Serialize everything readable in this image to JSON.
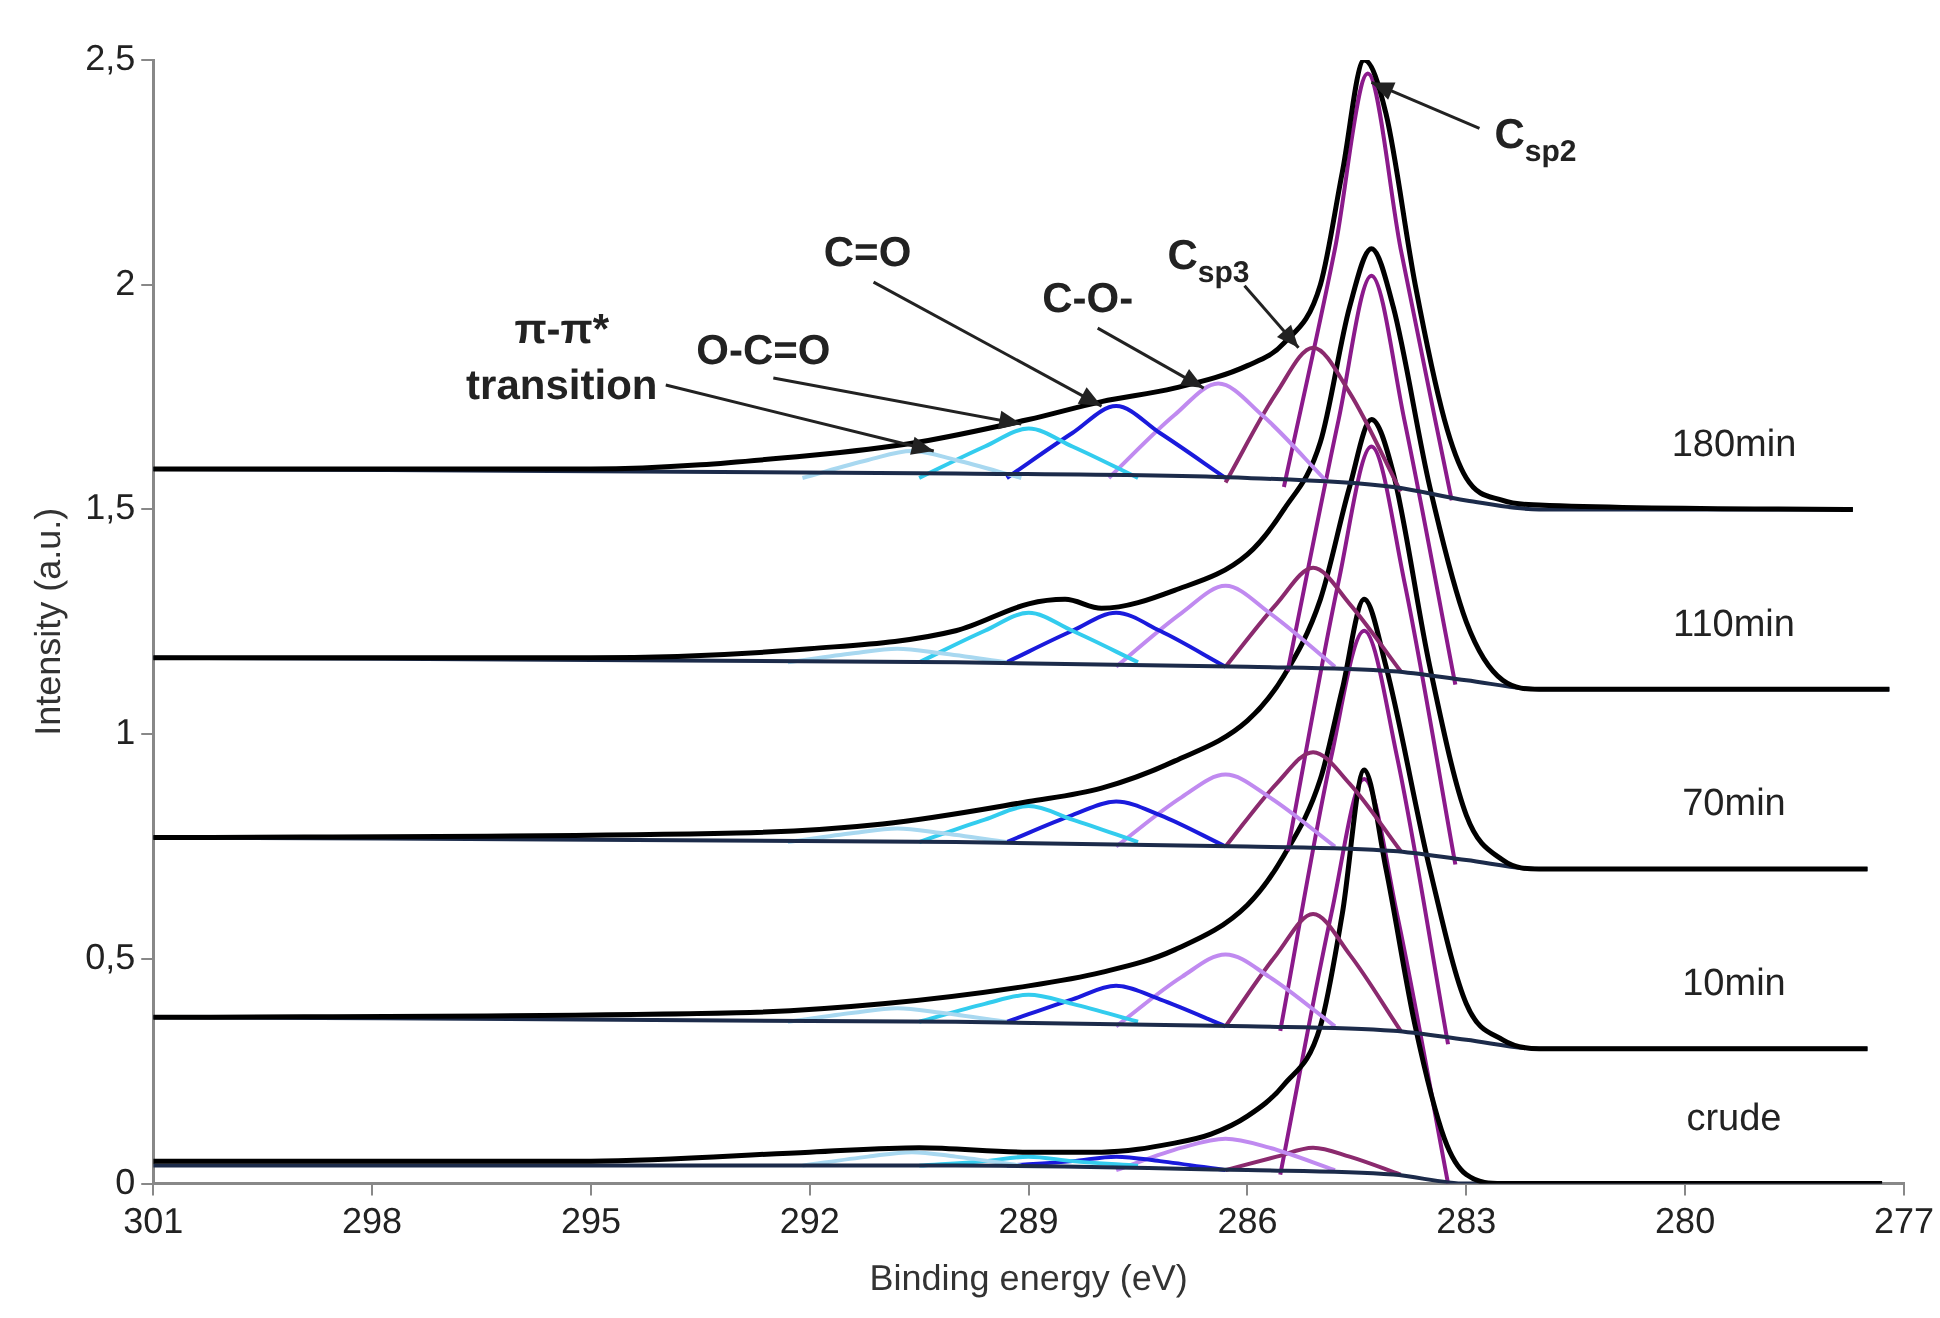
{
  "chart_data": {
    "type": "line",
    "xlabel": "Binding energy (eV)",
    "ylabel": "Intensity (a.u.)",
    "xlim": [
      301,
      277
    ],
    "xticks": [
      301,
      298,
      295,
      292,
      289,
      286,
      283,
      280,
      277
    ],
    "ylim": [
      0,
      2.5
    ],
    "yticks": [
      0,
      {
        "value": 0.5,
        "label": "0,5"
      },
      1,
      {
        "value": 1.5,
        "label": "1,5"
      },
      2,
      {
        "value": 2.5,
        "label": "2,5"
      }
    ],
    "grid": false,
    "legend": false,
    "marker": "none",
    "line_style": "solid",
    "annotations": [
      {
        "text": "π-π* transition",
        "x": 290.3,
        "y": 1.63
      },
      {
        "text": "O-C=O",
        "x": 289.1,
        "y": 1.69
      },
      {
        "text": "C=O",
        "x": 288,
        "y": 1.73
      },
      {
        "text": "C-O-",
        "x": 286.6,
        "y": 1.77
      },
      {
        "text": "C$_{sp3}$",
        "x": 285.3,
        "y": 1.86
      },
      {
        "text": "C$_{sp2}$",
        "x": 284.3,
        "y": 2.45
      }
    ],
    "series": [
      {
        "name": "180min",
        "color": "#000000",
        "x": [
          301,
          295,
          292,
          290.5,
          289,
          288,
          287,
          286,
          285.5,
          285,
          284.7,
          284.4,
          284.1,
          283.7,
          283.3,
          283,
          282.5,
          282,
          277.7
        ],
        "values": [
          1.59,
          1.59,
          1.62,
          1.65,
          1.7,
          1.74,
          1.77,
          1.82,
          1.87,
          2.0,
          2.25,
          2.5,
          2.38,
          2.0,
          1.7,
          1.57,
          1.52,
          1.51,
          1.5
        ]
      },
      {
        "type": "line",
        "color": "#1c2b4a",
        "x": [
          301,
          290,
          286,
          284,
          283,
          282,
          277.7
        ],
        "values": [
          1.59,
          1.58,
          1.57,
          1.55,
          1.52,
          1.5,
          1.5
        ]
      },
      {
        "type": "line",
        "color": "#a8d8f0",
        "x": [
          292.1,
          291.2,
          290.6,
          290.0,
          289.1
        ],
        "values": [
          1.57,
          1.61,
          1.63,
          1.61,
          1.57
        ]
      },
      {
        "type": "line",
        "color": "#33ccee",
        "x": [
          290.5,
          289.6,
          289.0,
          288.4,
          287.5
        ],
        "values": [
          1.57,
          1.64,
          1.68,
          1.64,
          1.57
        ]
      },
      {
        "type": "line",
        "color": "#1a1adc",
        "x": [
          289.3,
          288.4,
          287.8,
          287.2,
          286.3
        ],
        "values": [
          1.57,
          1.67,
          1.73,
          1.67,
          1.57
        ]
      },
      {
        "type": "line",
        "color": "#c08af0",
        "x": [
          287.9,
          287.0,
          286.4,
          285.8,
          284.9
        ],
        "values": [
          1.57,
          1.71,
          1.78,
          1.71,
          1.56
        ]
      },
      {
        "type": "line",
        "color": "#8b2a6e",
        "x": [
          286.3,
          285.6,
          285.1,
          284.6,
          283.9
        ],
        "values": [
          1.56,
          1.76,
          1.86,
          1.76,
          1.54
        ]
      },
      {
        "type": "line",
        "color": "#8b1a8b",
        "x": [
          285.5,
          284.8,
          284.35,
          283.9,
          283.2
        ],
        "values": [
          1.55,
          2.08,
          2.47,
          2.08,
          1.52
        ]
      },
      {
        "name": "110min",
        "color": "#000000",
        "x": [
          301,
          295,
          292,
          290,
          289,
          288.5,
          288,
          287,
          286,
          285.5,
          285,
          284.6,
          284.3,
          284,
          283.5,
          283,
          282.5,
          282,
          277.2
        ],
        "values": [
          1.17,
          1.17,
          1.19,
          1.23,
          1.29,
          1.3,
          1.28,
          1.32,
          1.4,
          1.5,
          1.65,
          1.95,
          2.08,
          1.95,
          1.55,
          1.25,
          1.12,
          1.1,
          1.1
        ]
      },
      {
        "type": "line",
        "color": "#1c2b4a",
        "x": [
          301,
          290,
          286,
          284,
          283,
          282,
          277.2
        ],
        "values": [
          1.17,
          1.16,
          1.15,
          1.14,
          1.12,
          1.1,
          1.1
        ]
      },
      {
        "type": "line",
        "color": "#a8d8f0",
        "x": [
          292.3,
          291.4,
          290.8,
          290.2,
          289.3
        ],
        "values": [
          1.16,
          1.18,
          1.19,
          1.18,
          1.16
        ]
      },
      {
        "type": "line",
        "color": "#33ccee",
        "x": [
          290.5,
          289.6,
          289.0,
          288.4,
          287.5
        ],
        "values": [
          1.16,
          1.23,
          1.27,
          1.23,
          1.16
        ]
      },
      {
        "type": "line",
        "color": "#1a1adc",
        "x": [
          289.3,
          288.4,
          287.8,
          287.2,
          286.3
        ],
        "values": [
          1.16,
          1.23,
          1.27,
          1.23,
          1.15
        ]
      },
      {
        "type": "line",
        "color": "#c08af0",
        "x": [
          287.8,
          286.9,
          286.3,
          285.7,
          284.8
        ],
        "values": [
          1.15,
          1.27,
          1.33,
          1.27,
          1.15
        ]
      },
      {
        "type": "line",
        "color": "#8b2a6e",
        "x": [
          286.3,
          285.6,
          285.1,
          284.6,
          283.9
        ],
        "values": [
          1.15,
          1.29,
          1.37,
          1.29,
          1.14
        ]
      },
      {
        "type": "line",
        "color": "#8b1a8b",
        "x": [
          285.45,
          284.75,
          284.3,
          283.85,
          283.15
        ],
        "values": [
          1.14,
          1.7,
          2.02,
          1.7,
          1.11
        ]
      },
      {
        "name": "70min",
        "color": "#000000",
        "x": [
          301,
          293,
          291,
          289,
          288,
          287,
          286,
          285.5,
          285,
          284.6,
          284.3,
          284,
          283.5,
          283,
          282.5,
          282,
          277.5
        ],
        "values": [
          0.77,
          0.78,
          0.8,
          0.85,
          0.88,
          0.94,
          1.03,
          1.13,
          1.3,
          1.55,
          1.7,
          1.58,
          1.15,
          0.82,
          0.72,
          0.7,
          0.7
        ]
      },
      {
        "type": "line",
        "color": "#1c2b4a",
        "x": [
          301,
          290,
          286,
          284,
          283,
          282,
          277.5
        ],
        "values": [
          0.77,
          0.76,
          0.75,
          0.74,
          0.72,
          0.7,
          0.7
        ]
      },
      {
        "type": "line",
        "color": "#a8d8f0",
        "x": [
          292.3,
          291.4,
          290.8,
          290.2,
          289.3
        ],
        "values": [
          0.76,
          0.78,
          0.79,
          0.78,
          0.76
        ]
      },
      {
        "type": "line",
        "color": "#33ccee",
        "x": [
          290.5,
          289.6,
          289.0,
          288.4,
          287.5
        ],
        "values": [
          0.76,
          0.81,
          0.84,
          0.81,
          0.76
        ]
      },
      {
        "type": "line",
        "color": "#1a1adc",
        "x": [
          289.3,
          288.4,
          287.8,
          287.2,
          286.3
        ],
        "values": [
          0.76,
          0.82,
          0.85,
          0.82,
          0.75
        ]
      },
      {
        "type": "line",
        "color": "#c08af0",
        "x": [
          287.8,
          286.9,
          286.3,
          285.7,
          284.8
        ],
        "values": [
          0.75,
          0.86,
          0.91,
          0.86,
          0.75
        ]
      },
      {
        "type": "line",
        "color": "#8b2a6e",
        "x": [
          286.3,
          285.6,
          285.1,
          284.6,
          283.9
        ],
        "values": [
          0.75,
          0.89,
          0.96,
          0.89,
          0.74
        ]
      },
      {
        "type": "line",
        "color": "#8b1a8b",
        "x": [
          285.45,
          284.75,
          284.3,
          283.85,
          283.15
        ],
        "values": [
          0.74,
          1.34,
          1.64,
          1.34,
          0.71
        ]
      },
      {
        "name": "10min",
        "color": "#000000",
        "x": [
          301,
          293,
          291,
          289,
          288,
          287,
          286,
          285.5,
          285,
          284.7,
          284.4,
          284.1,
          283.5,
          283,
          282.5,
          282,
          277.5
        ],
        "values": [
          0.37,
          0.38,
          0.4,
          0.44,
          0.47,
          0.52,
          0.62,
          0.73,
          0.9,
          1.1,
          1.3,
          1.15,
          0.7,
          0.4,
          0.32,
          0.3,
          0.3
        ]
      },
      {
        "type": "line",
        "color": "#1c2b4a",
        "x": [
          301,
          290,
          286,
          284,
          283,
          282,
          277.5
        ],
        "values": [
          0.37,
          0.36,
          0.35,
          0.34,
          0.32,
          0.3,
          0.3
        ]
      },
      {
        "type": "line",
        "color": "#a8d8f0",
        "x": [
          292.3,
          291.4,
          290.8,
          290.2,
          289.3
        ],
        "values": [
          0.36,
          0.38,
          0.39,
          0.38,
          0.36
        ]
      },
      {
        "type": "line",
        "color": "#33ccee",
        "x": [
          290.5,
          289.6,
          289.0,
          288.4,
          287.5
        ],
        "values": [
          0.36,
          0.4,
          0.42,
          0.4,
          0.36
        ]
      },
      {
        "type": "line",
        "color": "#1a1adc",
        "x": [
          289.3,
          288.4,
          287.8,
          287.2,
          286.3
        ],
        "values": [
          0.36,
          0.41,
          0.44,
          0.41,
          0.35
        ]
      },
      {
        "type": "line",
        "color": "#c08af0",
        "x": [
          287.8,
          286.9,
          286.3,
          285.7,
          284.8
        ],
        "values": [
          0.35,
          0.46,
          0.51,
          0.46,
          0.35
        ]
      },
      {
        "type": "line",
        "color": "#8b2a6e",
        "x": [
          286.3,
          285.6,
          285.1,
          284.6,
          283.9
        ],
        "values": [
          0.35,
          0.51,
          0.6,
          0.51,
          0.34
        ]
      },
      {
        "type": "line",
        "color": "#8b1a8b",
        "x": [
          285.55,
          284.85,
          284.4,
          283.95,
          283.25
        ],
        "values": [
          0.34,
          0.95,
          1.23,
          0.95,
          0.31
        ]
      },
      {
        "name": "crude",
        "color": "#000000",
        "x": [
          301,
          295,
          292,
          290.5,
          289,
          288,
          287,
          286.5,
          286,
          285.5,
          285,
          284.7,
          284.4,
          284.1,
          283.7,
          283.3,
          283,
          282.5,
          277.3
        ],
        "values": [
          0.05,
          0.05,
          0.07,
          0.08,
          0.07,
          0.07,
          0.09,
          0.11,
          0.15,
          0.22,
          0.35,
          0.6,
          0.92,
          0.7,
          0.35,
          0.1,
          0.02,
          0,
          0
        ]
      },
      {
        "type": "line",
        "color": "#1c2b4a",
        "x": [
          301,
          290,
          286,
          284,
          283,
          277.3
        ],
        "values": [
          0.04,
          0.04,
          0.03,
          0.02,
          0,
          0
        ]
      },
      {
        "type": "line",
        "color": "#a8d8f0",
        "x": [
          292.1,
          291.2,
          290.6,
          290.0,
          289.1
        ],
        "values": [
          0.04,
          0.06,
          0.07,
          0.06,
          0.04
        ]
      },
      {
        "type": "line",
        "color": "#33ccee",
        "x": [
          290.5,
          289.6,
          289.0,
          288.4,
          287.5
        ],
        "values": [
          0.04,
          0.05,
          0.06,
          0.05,
          0.04
        ]
      },
      {
        "type": "line",
        "color": "#1a1adc",
        "x": [
          289.3,
          288.4,
          287.8,
          287.2,
          286.3
        ],
        "values": [
          0.04,
          0.05,
          0.06,
          0.05,
          0.03
        ]
      },
      {
        "type": "line",
        "color": "#c08af0",
        "x": [
          287.8,
          286.9,
          286.3,
          285.7,
          284.8
        ],
        "values": [
          0.03,
          0.08,
          0.1,
          0.08,
          0.03
        ]
      },
      {
        "type": "line",
        "color": "#8b2a6e",
        "x": [
          286.3,
          285.6,
          285.1,
          284.6,
          283.9
        ],
        "values": [
          0.03,
          0.06,
          0.08,
          0.06,
          0.02
        ]
      },
      {
        "type": "line",
        "color": "#8b1a8b",
        "x": [
          285.55,
          284.85,
          284.4,
          283.95,
          283.25
        ],
        "values": [
          0.02,
          0.6,
          0.9,
          0.6,
          0
        ]
      }
    ]
  }
}
